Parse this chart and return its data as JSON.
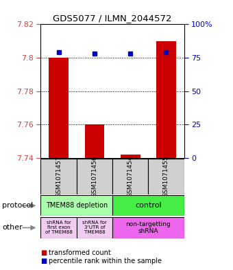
{
  "title": "GDS5077 / ILMN_2044572",
  "samples": [
    "GSM1071457",
    "GSM1071456",
    "GSM1071454",
    "GSM1071455"
  ],
  "transformed_counts": [
    7.8,
    7.76,
    7.742,
    7.81
  ],
  "percentile_ranks": [
    79,
    78,
    78,
    79
  ],
  "ylim": [
    7.74,
    7.82
  ],
  "y_left_ticks": [
    7.74,
    7.76,
    7.78,
    7.8,
    7.82
  ],
  "y_right_ticks": [
    0,
    25,
    50,
    75,
    100
  ],
  "y_right_tick_labels": [
    "0",
    "25",
    "50",
    "75",
    "100%"
  ],
  "bar_color": "#cc0000",
  "dot_color": "#0000cc",
  "bar_bottom": 7.74,
  "protocol_labels": [
    "TMEM88 depletion",
    "control"
  ],
  "protocol_colors": [
    "#aaffaa",
    "#44ee44"
  ],
  "other_labels": [
    "shRNA for\nfirst exon\nof TMEM88",
    "shRNA for\n3'UTR of\nTMEM88",
    "non-targetting\nshRNA"
  ],
  "other_colors": [
    "#f0ccf0",
    "#f0ccf0",
    "#ee66ee"
  ],
  "legend_red_label": "transformed count",
  "legend_blue_label": "percentile rank within the sample",
  "axis_left_color": "#cc4444",
  "axis_right_color": "#0000cc",
  "bg_color": "#ffffff",
  "sample_box_color": "#d0d0d0",
  "arrow_color": "#888888"
}
